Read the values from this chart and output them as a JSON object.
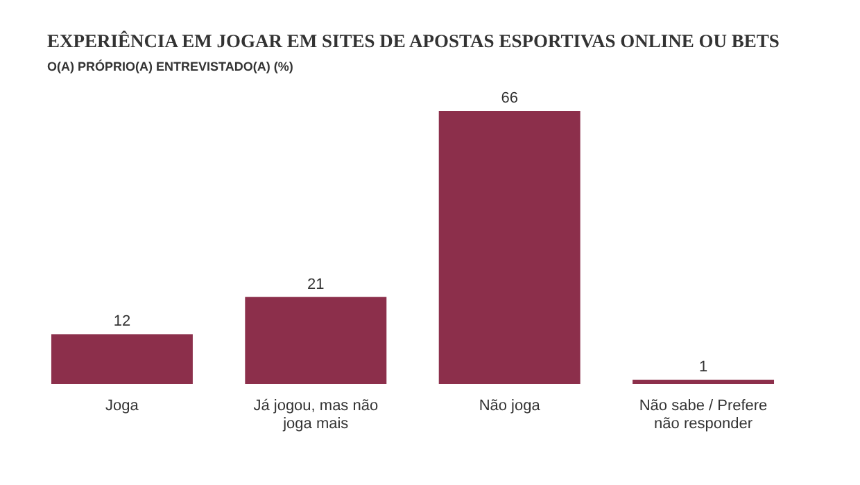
{
  "chart_data": {
    "type": "bar",
    "title": "EXPERIÊNCIA EM JOGAR EM SITES DE APOSTAS ESPORTIVAS ONLINE OU BETS",
    "subtitle": "O(A) PRÓPRIO(A) ENTREVISTADO(A) (%)",
    "categories": [
      "Joga",
      "Já jogou, mas não joga mais",
      "Não joga",
      "Não sabe / Prefere não responder"
    ],
    "values": [
      12,
      21,
      66,
      1
    ],
    "color": "#8c2f4b",
    "data_labels": true
  }
}
